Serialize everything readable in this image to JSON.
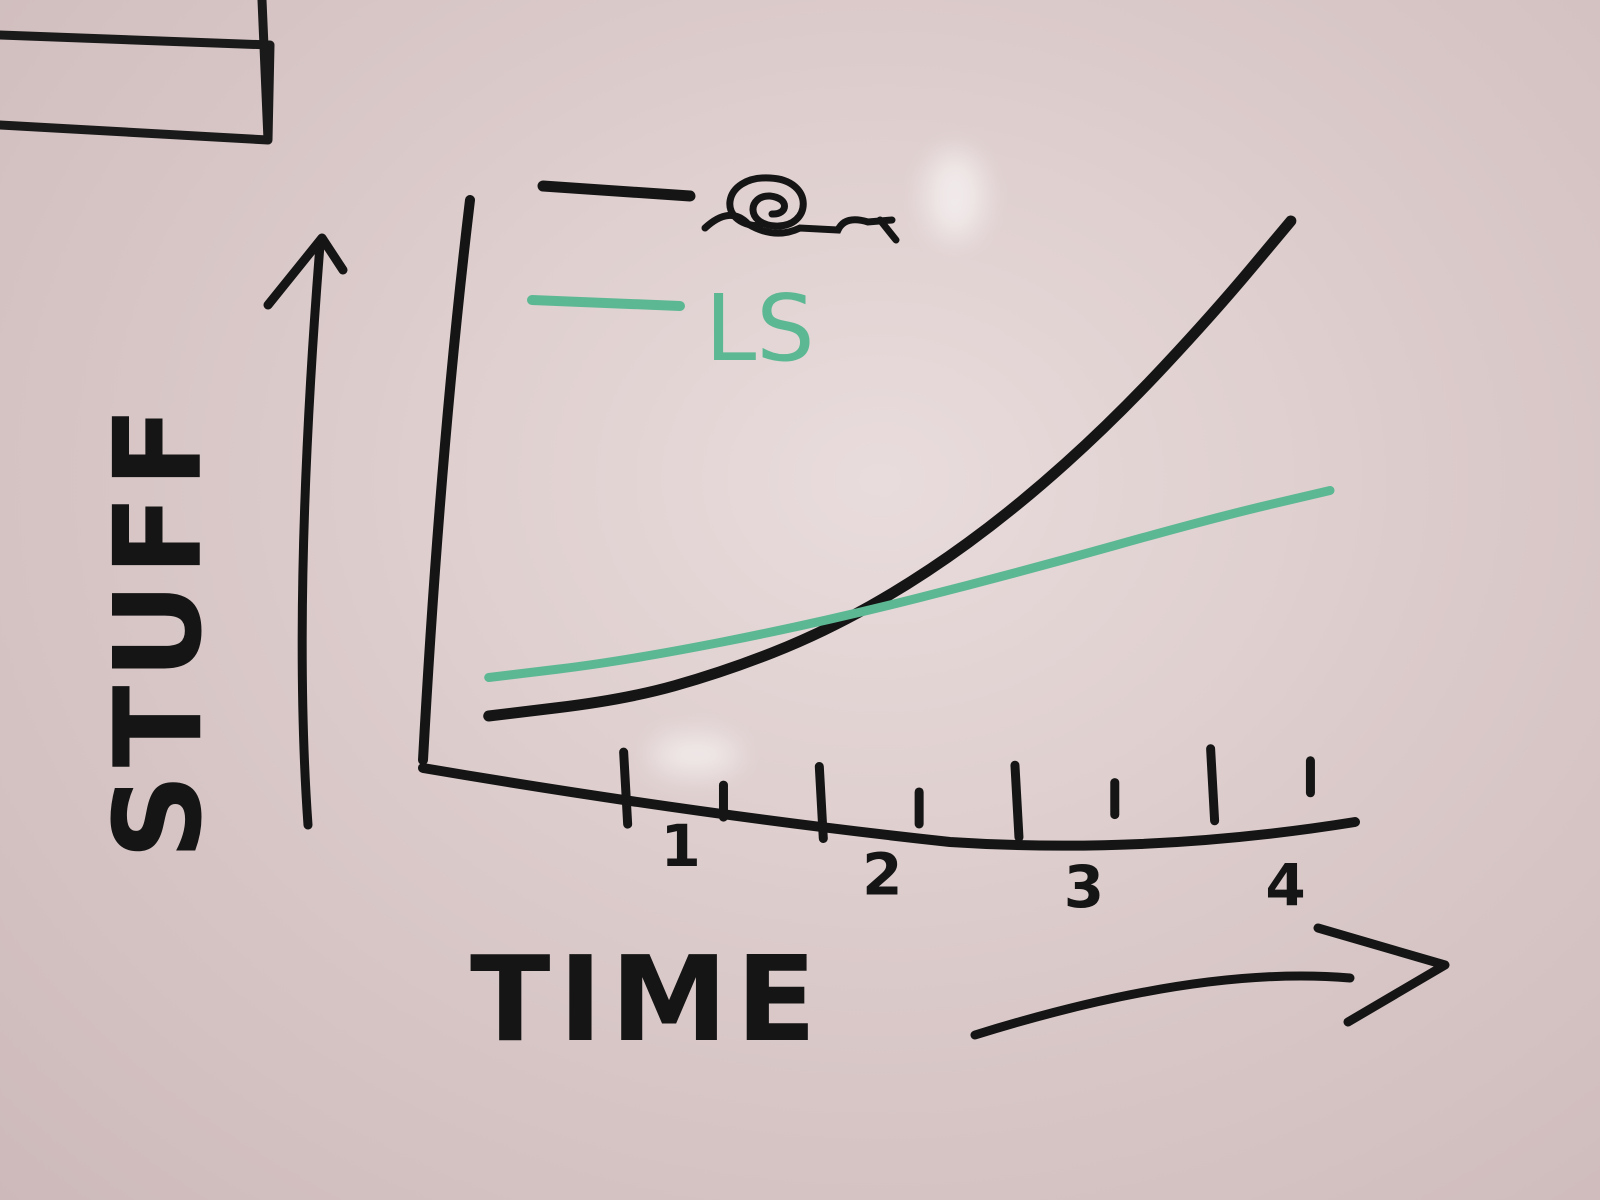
{
  "chart_data": {
    "type": "line",
    "xlabel": "TIME",
    "ylabel": "STUFF",
    "x_ticks": [
      "1",
      "2",
      "3",
      "4"
    ],
    "xlim": [
      0,
      4.6
    ],
    "ylim": [
      0,
      10
    ],
    "legend_placement": "top-left",
    "series": [
      {
        "name_drawing": "snail-icon",
        "color": "#151515",
        "x": [
          0.3,
          1.0,
          1.5,
          2.0,
          2.5,
          3.0,
          3.5,
          4.0,
          4.4
        ],
        "y": [
          0.8,
          1.1,
          1.6,
          2.3,
          3.3,
          4.6,
          6.2,
          8.1,
          9.8
        ]
      },
      {
        "name": "LS",
        "color": "#5cb893",
        "x": [
          0.3,
          1.0,
          2.0,
          3.0,
          4.0,
          4.6
        ],
        "y": [
          1.5,
          1.8,
          2.5,
          3.4,
          4.4,
          4.9
        ]
      }
    ]
  }
}
